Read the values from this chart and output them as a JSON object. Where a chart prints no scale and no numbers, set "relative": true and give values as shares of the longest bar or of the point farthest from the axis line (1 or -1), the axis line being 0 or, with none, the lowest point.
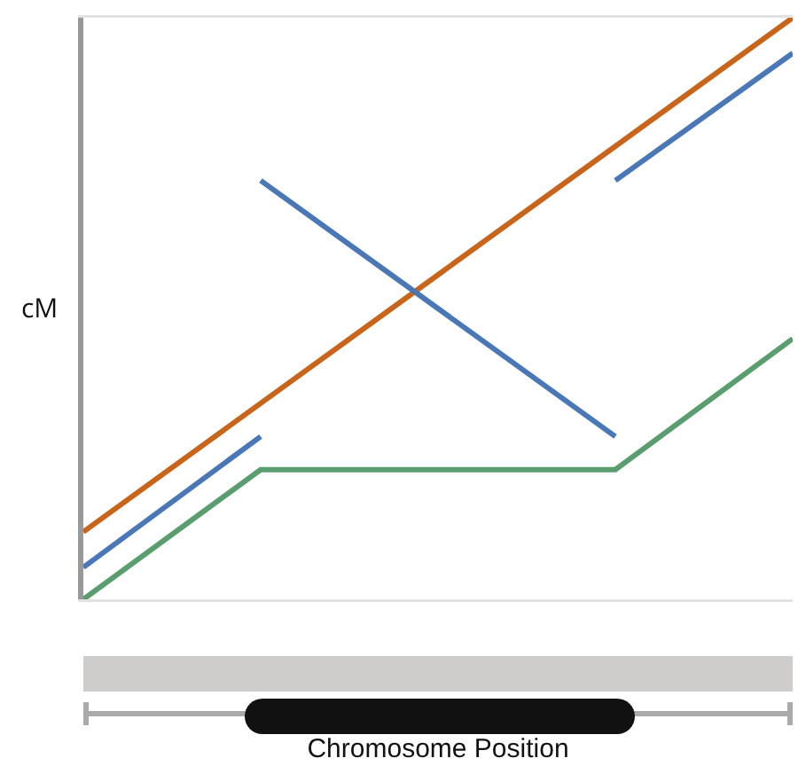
{
  "chart_data": {
    "type": "line",
    "relative": true,
    "ylabel": "cM",
    "annotations": [
      "Chromosome Position"
    ],
    "categories": [
      null,
      null,
      null,
      null,
      null
    ],
    "marker": "none",
    "line_style": "solid",
    "grid": false,
    "series": [
      {
        "color": "#c8651b",
        "values": [
          0.116,
          0.337,
          0.558,
          0.779,
          1
        ]
      },
      {
        "color": "#4a78b6",
        "values": [
          0.055,
          0.28,
          null,
          null,
          null
        ]
      },
      {
        "color": "#4a78b6",
        "values": [
          null,
          0.72,
          0.5,
          0.28,
          null
        ]
      },
      {
        "color": "#4a78b6",
        "values": [
          null,
          null,
          null,
          0.72,
          0.939
        ]
      },
      {
        "color": "#5a9e6f",
        "values": [
          0,
          0.223,
          0.223,
          0.223,
          0.448
        ]
      }
    ]
  }
}
